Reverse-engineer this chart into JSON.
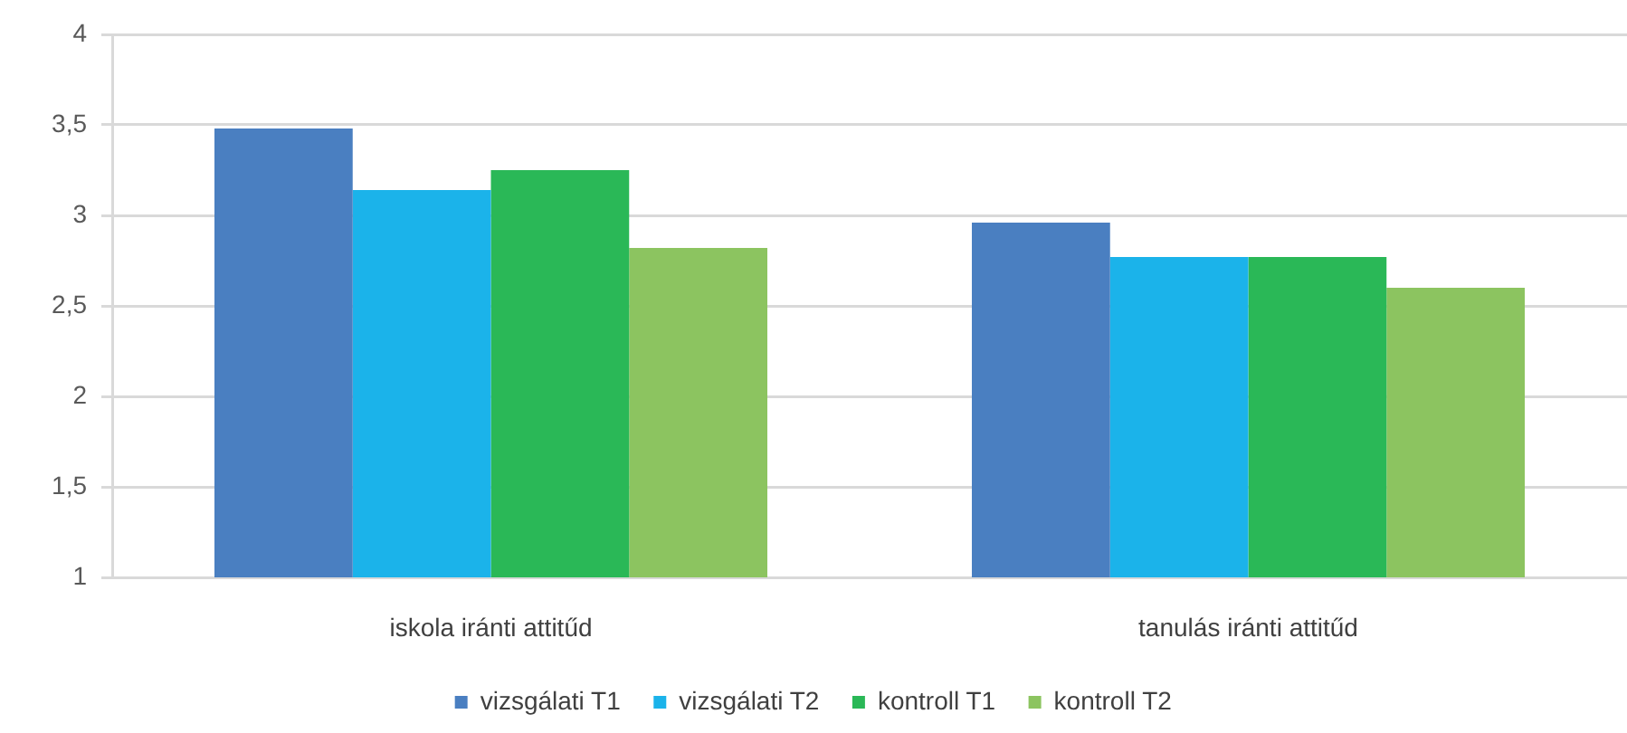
{
  "chart_data": {
    "type": "bar",
    "categories": [
      "iskola iránti attitűd",
      "tanulás iránti attitűd"
    ],
    "series": [
      {
        "name": "vizsgálati T1",
        "color": "#4a7fc1",
        "values": [
          3.48,
          2.96
        ]
      },
      {
        "name": "vizsgálati T2",
        "color": "#1bb3ea",
        "values": [
          3.14,
          2.77
        ]
      },
      {
        "name": "kontroll T1",
        "color": "#2ab857",
        "values": [
          3.25,
          2.77
        ]
      },
      {
        "name": "kontroll T2",
        "color": "#8cc460",
        "values": [
          2.82,
          2.6
        ]
      }
    ],
    "ylim": [
      1,
      4
    ],
    "yticks": [
      1,
      {
        "value": 1.5,
        "label": "1,5"
      },
      2,
      {
        "value": 2.5,
        "label": "2,5"
      },
      3,
      {
        "value": 3.5,
        "label": "3,5"
      },
      4
    ],
    "grid": "y",
    "legend": "bottom"
  }
}
